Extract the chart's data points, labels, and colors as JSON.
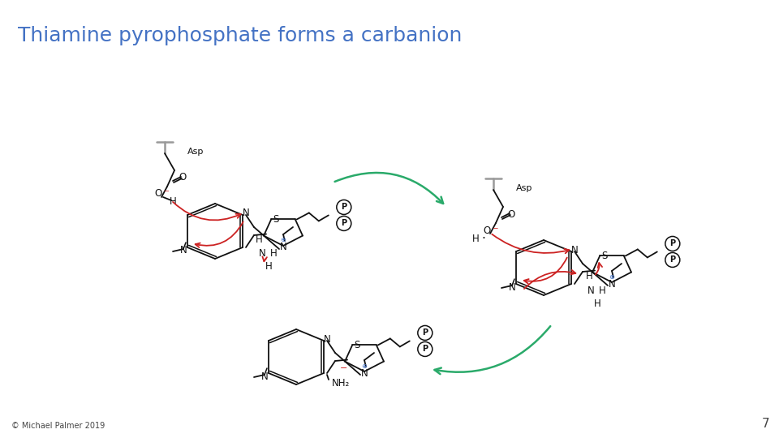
{
  "title": "Thiamine pyrophosphate forms a carbanion",
  "title_color": "#4472C4",
  "title_fontsize": 18,
  "copyright_text": "© Michael Palmer 2019",
  "page_number": "7",
  "footer_fontsize": 7,
  "bg_color": "#ffffff",
  "green_color": "#2aaa6a",
  "red_color": "#cc2222",
  "black": "#111111",
  "gray": "#999999",
  "blue_plus": "#4472C4"
}
